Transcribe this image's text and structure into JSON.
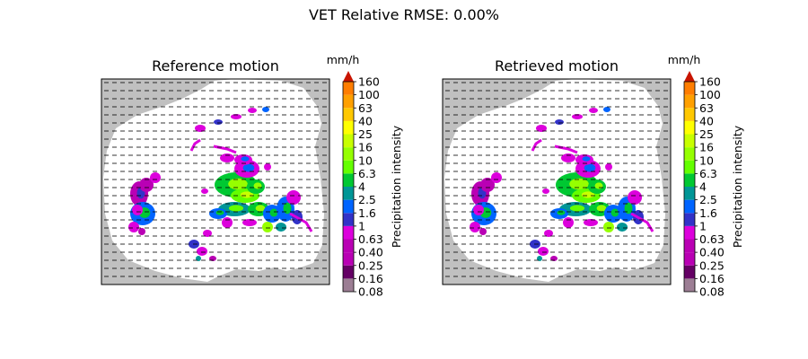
{
  "figure": {
    "suptitle": "VET Relative RMSE: 0.00%"
  },
  "colorbar": {
    "unit": "mm/h",
    "label": "Precipitation intensity",
    "ticks": [
      "0.08",
      "0.16",
      "0.25",
      "0.40",
      "0.63",
      "1",
      "1.6",
      "2.5",
      "4",
      "6.3",
      "10",
      "16",
      "25",
      "40",
      "63",
      "100",
      "160"
    ],
    "colors": [
      "#9c7e94",
      "#640064",
      "#b900b4",
      "#b900b4",
      "#dc00dc",
      "#3232c8",
      "#0064ff",
      "#009696",
      "#00c832",
      "#64ff00",
      "#96ff00",
      "#c8ff00",
      "#ffff00",
      "#ffc800",
      "#ffa000",
      "#ff7d00",
      "#e11900"
    ],
    "extend_color": "#c81400",
    "extend": "max"
  },
  "panels": [
    {
      "title": "Reference motion"
    },
    {
      "title": "Retrieved motion"
    }
  ],
  "colors": {
    "background_mask": "#c0c0c0",
    "radar_domain": "#ffffff",
    "motion_arrows": "#000000"
  },
  "chart_data": [
    {
      "type": "heatmap",
      "title": "Reference motion",
      "description_overlay": "precipitation field with motion vectors",
      "colorbar_label": "Precipitation intensity",
      "colorbar_unit": "mm/h",
      "colorbar_ticks": [
        0.08,
        0.16,
        0.25,
        0.4,
        0.63,
        1,
        1.6,
        2.5,
        4,
        6.3,
        10,
        16,
        25,
        40,
        63,
        100,
        160
      ],
      "motion_field": "uniform eastward vectors",
      "grid": false
    },
    {
      "type": "heatmap",
      "title": "Retrieved motion",
      "colorbar_label": "Precipitation intensity",
      "colorbar_unit": "mm/h",
      "colorbar_ticks": [
        0.08,
        0.16,
        0.25,
        0.4,
        0.63,
        1,
        1.6,
        2.5,
        4,
        6.3,
        10,
        16,
        25,
        40,
        63,
        100,
        160
      ],
      "motion_field": "uniform eastward vectors",
      "grid": false
    }
  ]
}
